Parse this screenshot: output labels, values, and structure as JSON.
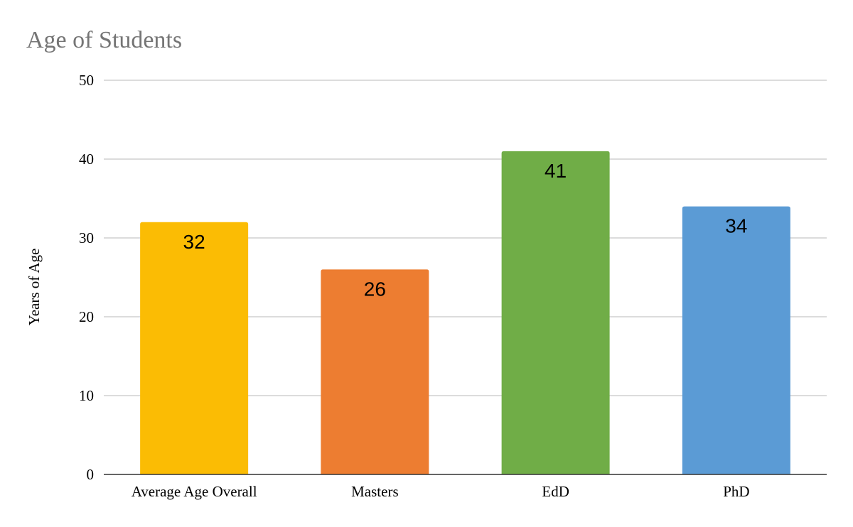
{
  "chart_data": {
    "type": "bar",
    "title": "Age of Students",
    "xlabel": "",
    "ylabel": "Years of Age",
    "categories": [
      "Average Age Overall",
      "Masters",
      "EdD",
      "PhD"
    ],
    "values": [
      32,
      26,
      41,
      34
    ],
    "data_labels": [
      "32",
      "26",
      "41",
      "34"
    ],
    "colors": [
      "#fbbc04",
      "#ed7d31",
      "#70ad47",
      "#5b9bd5"
    ],
    "ylim": [
      0,
      50
    ],
    "yticks": [
      0,
      10,
      20,
      30,
      40,
      50
    ],
    "grid": true,
    "legend": "none"
  }
}
